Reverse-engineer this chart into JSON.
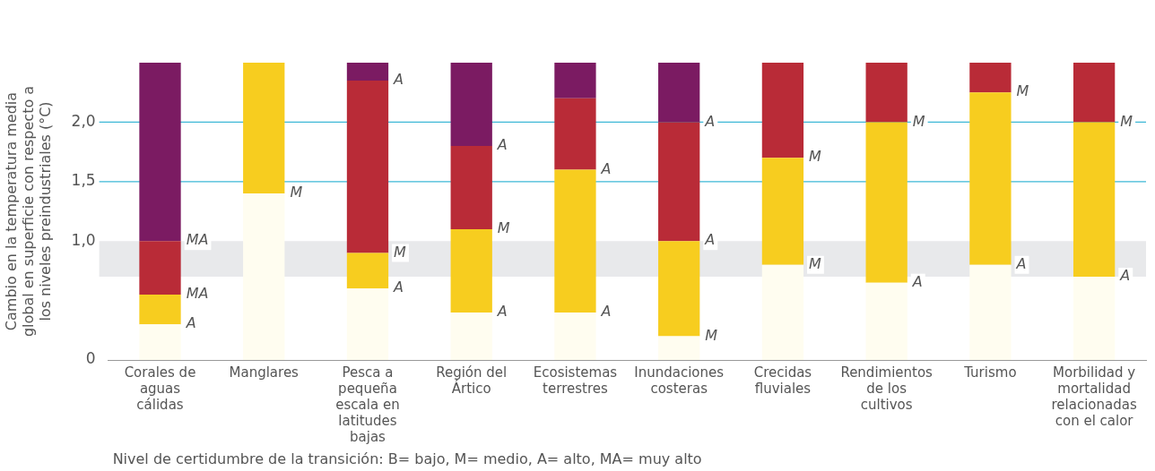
{
  "chart_data": {
    "type": "bar",
    "stacked": true,
    "ylabel": "Cambio en la temperatura media global en superficie con respecto a los niveles preindustriales (°C)",
    "categories": [
      "Corales de aguas cálidas",
      "Manglares",
      "Pesca a pequeña escala en latitudes bajas",
      "Región del Ártico",
      "Ecosistemas terrestres",
      "Inundaciones costeras",
      "Crecidas fluviales",
      "Rendimientos de los cultivos",
      "Turismo",
      "Morbilidad y mortalidad relacionadas con el calor"
    ],
    "series": [
      {
        "color": "#fffdf0",
        "values": [
          0.3,
          1.4,
          0.6,
          0.4,
          0.4,
          0.2,
          0.8,
          0.65,
          0.8,
          0.7
        ]
      },
      {
        "color": "#f7cd1f",
        "values": [
          0.25,
          1.1,
          0.3,
          0.7,
          1.2,
          0.8,
          0.9,
          1.35,
          1.45,
          1.3
        ]
      },
      {
        "color": "#b92b37",
        "values": [
          0.45,
          0,
          1.45,
          0.7,
          0.6,
          1.0,
          0.8,
          0.5,
          0.25,
          0.5
        ]
      },
      {
        "color": "#7b1b62",
        "values": [
          1.5,
          0,
          0.15,
          0.7,
          0.3,
          0.5,
          0,
          0,
          0,
          0
        ]
      }
    ],
    "ylim": [
      0,
      2.5
    ],
    "yticks": [
      0,
      {
        "value": 1,
        "label": "1,0"
      },
      {
        "value": 1.5,
        "label": "1,5"
      },
      {
        "value": 2,
        "label": "2,0"
      }
    ],
    "grid": false,
    "legend": false,
    "ref_lines": [
      {
        "axis": "y",
        "value": 1.5,
        "color": "#3db8d6"
      },
      {
        "axis": "y",
        "value": 2,
        "color": "#3db8d6"
      }
    ],
    "bands": [
      {
        "axis": "y",
        "from": 0.7,
        "to": 1.0,
        "color": "#e8e9eb"
      }
    ],
    "annotations": [
      {
        "text": "MA",
        "x": "Corales de aguas cálidas",
        "y": 1.0
      },
      {
        "text": "MA",
        "x": "Corales de aguas cálidas",
        "y": 0.55
      },
      {
        "text": "A",
        "x": "Corales de aguas cálidas",
        "y": 0.3
      },
      {
        "text": "M",
        "x": "Manglares",
        "y": 1.4
      },
      {
        "text": "A",
        "x": "Pesca a pequeña escala en latitudes bajas",
        "y": 2.35
      },
      {
        "text": "M",
        "x": "Pesca a pequeña escala en latitudes bajas",
        "y": 0.9
      },
      {
        "text": "A",
        "x": "Pesca a pequeña escala en latitudes bajas",
        "y": 0.6
      },
      {
        "text": "A",
        "x": "Región del Ártico",
        "y": 1.8
      },
      {
        "text": "M",
        "x": "Región del Ártico",
        "y": 1.1
      },
      {
        "text": "A",
        "x": "Región del Ártico",
        "y": 0.4
      },
      {
        "text": "A",
        "x": "Ecosistemas terrestres",
        "y": 1.6
      },
      {
        "text": "A",
        "x": "Ecosistemas terrestres",
        "y": 0.4
      },
      {
        "text": "A",
        "x": "Inundaciones costeras",
        "y": 2.0
      },
      {
        "text": "A",
        "x": "Inundaciones costeras",
        "y": 1.0
      },
      {
        "text": "M",
        "x": "Inundaciones costeras",
        "y": 0.2
      },
      {
        "text": "M",
        "x": "Crecidas fluviales",
        "y": 1.7
      },
      {
        "text": "M",
        "x": "Crecidas fluviales",
        "y": 0.8
      },
      {
        "text": "M",
        "x": "Rendimientos de los cultivos",
        "y": 2.0
      },
      {
        "text": "A",
        "x": "Rendimientos de los cultivos",
        "y": 0.65
      },
      {
        "text": "M",
        "x": "Turismo",
        "y": 2.25
      },
      {
        "text": "A",
        "x": "Turismo",
        "y": 0.8
      },
      {
        "text": "M",
        "x": "Morbilidad y mortalidad relacionadas con el calor",
        "y": 2.0
      },
      {
        "text": "A",
        "x": "Morbilidad y mortalidad relacionadas con el calor",
        "y": 0.7
      },
      "Nivel de certidumbre de la transición: B= bajo, M= medio, A= alto, MA= muy alto"
    ]
  }
}
